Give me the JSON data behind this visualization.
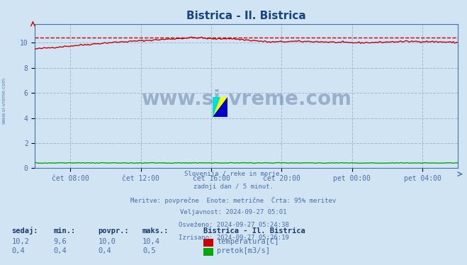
{
  "title": "Bistrica - Il. Bistrica",
  "title_color": "#1a4480",
  "background_color": "#d0e4f4",
  "plot_bg_color": "#d0e4f4",
  "grid_color": "#a0b8d0",
  "temp_color": "#cc0000",
  "flow_color": "#00aa00",
  "dashed_line_color": "#cc0000",
  "text_color": "#4a6fa5",
  "x_ticks": [
    "čet 08:00",
    "čet 12:00",
    "čet 16:00",
    "čet 20:00",
    "pet 00:00",
    "pet 04:00"
  ],
  "x_tick_positions": [
    0.0833,
    0.25,
    0.4167,
    0.5833,
    0.75,
    0.9167
  ],
  "y_ticks": [
    0,
    2,
    4,
    6,
    8,
    10
  ],
  "ylim": [
    0,
    11.5
  ],
  "xlim": [
    0,
    1
  ],
  "temp_max": 10.4,
  "subtitle_lines": [
    "Slovenija / reke in morje.",
    "zadnji dan / 5 minut.",
    "Meritve: povprečne  Enote: metrične  Črta: 95% meritev",
    "Veljavnost: 2024-09-27 05:01",
    "Osveženo: 2024-09-27 05:24:38",
    "Izrisano: 2024-09-27 05:26:19"
  ],
  "legend_title": "Bistrica - Il. Bistrica",
  "legend_items": [
    "temperatura[C]",
    "pretok[m3/s]"
  ],
  "stats_headers": [
    "sedaj:",
    "min.:",
    "povpr.:",
    "maks.:"
  ],
  "temp_stats": [
    "10,2",
    "9,6",
    "10,0",
    "10,4"
  ],
  "flow_stats": [
    "0,4",
    "0,4",
    "0,4",
    "0,5"
  ],
  "watermark": "www.si-vreme.com",
  "watermark_color": "#1a3a6a",
  "left_label": "www.si-vreme.com"
}
